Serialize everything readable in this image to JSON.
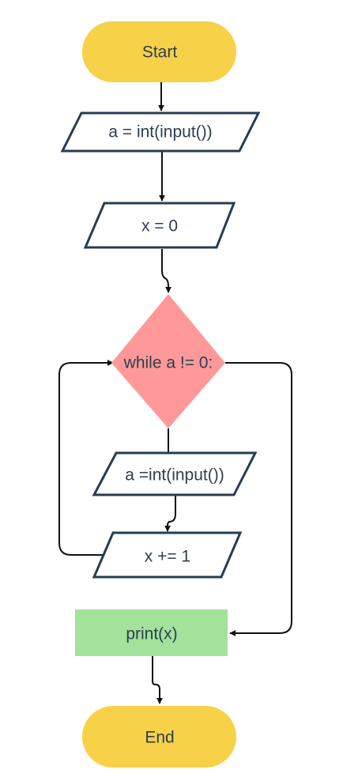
{
  "diagram": {
    "type": "flowchart",
    "colors": {
      "terminal": "#f7d148",
      "io_stroke": "#263d52",
      "decision": "#ff9999",
      "process": "#a3e29a",
      "edge": "#111111",
      "text": "#2c3e50"
    },
    "nodes": {
      "start": {
        "label": "Start",
        "shape": "terminal"
      },
      "input_a": {
        "label": "a = int(input())",
        "shape": "parallelogram"
      },
      "init_x": {
        "label": "x = 0",
        "shape": "parallelogram"
      },
      "loop_condition": {
        "label": "while a != 0:",
        "shape": "diamond"
      },
      "input_a_loop": {
        "label": "a =int(input())",
        "shape": "parallelogram"
      },
      "increment_x": {
        "label": "x += 1",
        "shape": "parallelogram"
      },
      "print_x": {
        "label": "print(x)",
        "shape": "rectangle"
      },
      "end": {
        "label": "End",
        "shape": "terminal"
      }
    },
    "edges": [
      {
        "from": "start",
        "to": "input_a"
      },
      {
        "from": "input_a",
        "to": "init_x"
      },
      {
        "from": "init_x",
        "to": "loop_condition"
      },
      {
        "from": "loop_condition",
        "to": "input_a_loop"
      },
      {
        "from": "input_a_loop",
        "to": "increment_x"
      },
      {
        "from": "increment_x",
        "to": "loop_condition"
      },
      {
        "from": "loop_condition",
        "to": "print_x"
      },
      {
        "from": "print_x",
        "to": "end"
      }
    ]
  }
}
